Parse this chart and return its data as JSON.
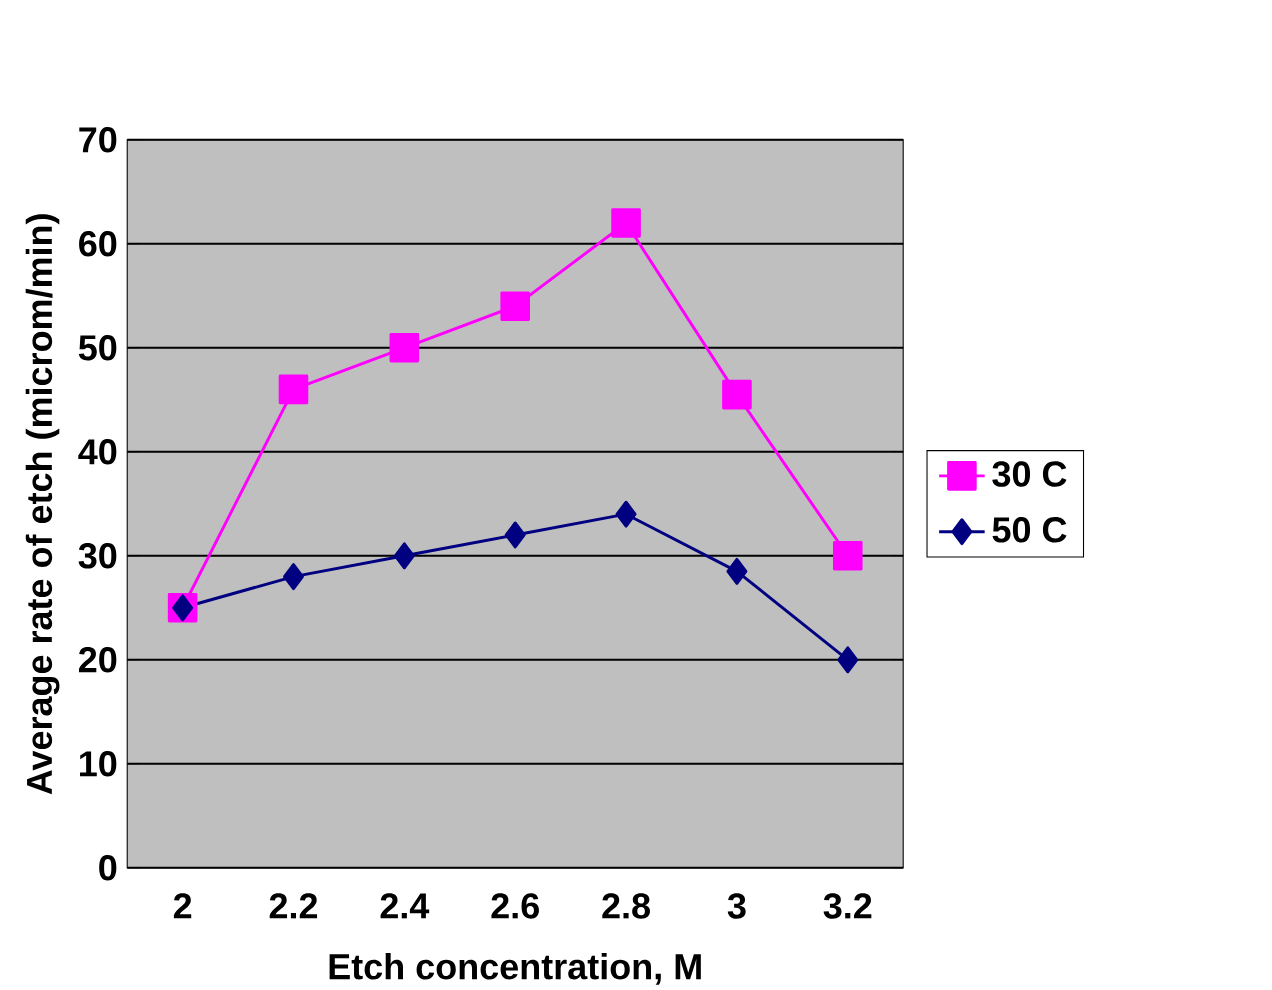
{
  "chart_data": {
    "type": "line",
    "xlabel": "Etch concentration, M",
    "ylabel": "Average rate of etch (microm/min)",
    "categories": [
      "2",
      "2.2",
      "2.4",
      "2.6",
      "2.8",
      "3",
      "3.2"
    ],
    "series": [
      {
        "name": "30 C",
        "color": "#ff00ff",
        "marker": "square",
        "values": [
          25,
          46,
          50,
          54,
          62,
          45.5,
          30
        ]
      },
      {
        "name": "50 C",
        "color": "#000080",
        "marker": "diamond",
        "values": [
          25,
          28,
          30,
          32,
          34,
          28.5,
          20
        ]
      }
    ],
    "ylim": [
      0,
      70
    ],
    "yticks": [
      0,
      10,
      20,
      30,
      40,
      50,
      60,
      70
    ],
    "grid": "y",
    "legend": "right"
  }
}
